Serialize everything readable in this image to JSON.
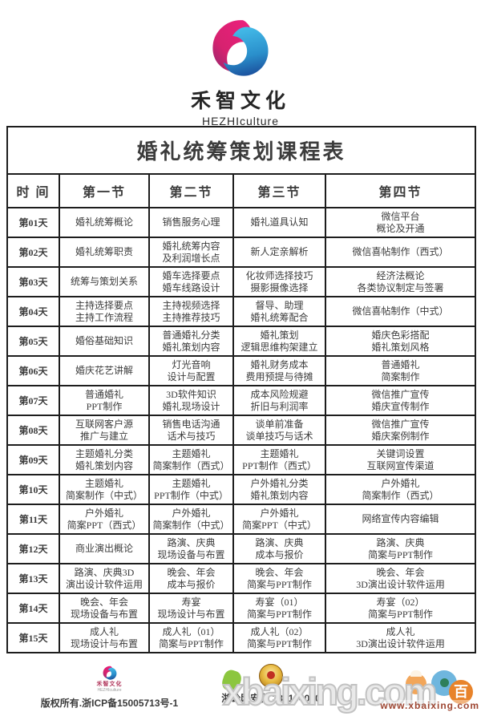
{
  "brand": {
    "name": "禾智文化",
    "subtitle": "HEZHIculture"
  },
  "colors": {
    "logo_pink": "#ee1f7e",
    "logo_pink_dark": "#8e2a6f",
    "logo_blue": "#45bdea",
    "logo_blue_dark": "#1b4f9c",
    "table_border": "#1d1d1d",
    "table_text": "#3c3c3c",
    "watermark_url_color": "#9e4632",
    "badge_gold": "#e7b93f"
  },
  "table": {
    "title": "婚礼统筹策划课程表",
    "headers": [
      "时 间",
      "第一节",
      "第二节",
      "第三节",
      "第四节"
    ],
    "rows": [
      {
        "day": "第01天",
        "lessons": [
          [
            "婚礼统筹概论"
          ],
          [
            "销售服务心理"
          ],
          [
            "婚礼道具认知"
          ],
          [
            "微信平台",
            "概论及开通"
          ]
        ]
      },
      {
        "day": "第02天",
        "lessons": [
          [
            "婚礼统筹职责"
          ],
          [
            "婚礼统筹内容",
            "及利润增长点"
          ],
          [
            "新人定亲解析"
          ],
          [
            "微信喜帖制作（西式）"
          ]
        ]
      },
      {
        "day": "第03天",
        "lessons": [
          [
            "统筹与策划关系"
          ],
          [
            "婚车选择要点",
            "婚车线路设计"
          ],
          [
            "化妆师选择技巧",
            "摄影摄像选择"
          ],
          [
            "经济法概论",
            "各类协议制定与签署"
          ]
        ]
      },
      {
        "day": "第04天",
        "lessons": [
          [
            "主持选择要点",
            "主持工作流程"
          ],
          [
            "主持视频选择",
            "主持推荐技巧"
          ],
          [
            "督导、助理",
            "婚礼统筹配合"
          ],
          [
            "微信喜帖制作（中式）"
          ]
        ]
      },
      {
        "day": "第05天",
        "lessons": [
          [
            "婚俗基础知识"
          ],
          [
            "普通婚礼分类",
            "婚礼策划内容"
          ],
          [
            "婚礼策划",
            "逻辑思维构架建立"
          ],
          [
            "婚庆色彩搭配",
            "婚礼策划风格"
          ]
        ]
      },
      {
        "day": "第06天",
        "lessons": [
          [
            "婚庆花艺讲解"
          ],
          [
            "灯光音响",
            "设计与配置"
          ],
          [
            "婚礼财务成本",
            "费用预提与待摊"
          ],
          [
            "普通婚礼",
            "简案制作"
          ]
        ]
      },
      {
        "day": "第07天",
        "lessons": [
          [
            "普通婚礼",
            "PPT制作"
          ],
          [
            "3D软件知识",
            "婚礼现场设计"
          ],
          [
            "成本风险规避",
            "折旧与利润率"
          ],
          [
            "微信推广宣传",
            "婚庆宣传制作"
          ]
        ]
      },
      {
        "day": "第08天",
        "lessons": [
          [
            "互联网客户源",
            "推广与建立"
          ],
          [
            "销售电话沟通",
            "话术与技巧"
          ],
          [
            "谈单前准备",
            "谈单技巧与话术"
          ],
          [
            "微信推广宣传",
            "婚庆案例制作"
          ]
        ]
      },
      {
        "day": "第09天",
        "lessons": [
          [
            "主题婚礼分类",
            "婚礼策划内容"
          ],
          [
            "主题婚礼",
            "简案制作（西式）"
          ],
          [
            "主题婚礼",
            "PPT制作（西式）"
          ],
          [
            "关键词设置",
            "互联网宣传渠道"
          ]
        ]
      },
      {
        "day": "第10天",
        "lessons": [
          [
            "主题婚礼",
            "简案制作（中式）"
          ],
          [
            "主题婚礼",
            "PPT制作（中式）"
          ],
          [
            "户外婚礼分类",
            "婚礼策划内容"
          ],
          [
            "户外婚礼",
            "简案制作（西式）"
          ]
        ]
      },
      {
        "day": "第11天",
        "lessons": [
          [
            "户外婚礼",
            "简案PPT（西式）"
          ],
          [
            "户外婚礼",
            "简案制作（中式）"
          ],
          [
            "户外婚礼",
            "简案PPT（中式）"
          ],
          [
            "网络宣传内容编辑"
          ]
        ]
      },
      {
        "day": "第12天",
        "lessons": [
          [
            "商业演出概论"
          ],
          [
            "路演、庆典",
            "现场设备与布置"
          ],
          [
            "路演、庆典",
            "成本与报价"
          ],
          [
            "路演、庆典",
            "简案与PPT制作"
          ]
        ]
      },
      {
        "day": "第13天",
        "lessons": [
          [
            "路演、庆典3D",
            "演出设计软件运用"
          ],
          [
            "晚会、年会",
            "成本与报价"
          ],
          [
            "晚会、年会",
            "简案与PPT制作"
          ],
          [
            "晚会、年会",
            "3D演出设计软件运用"
          ]
        ]
      },
      {
        "day": "第14天",
        "lessons": [
          [
            "晚会、年会",
            "现场设备与布置"
          ],
          [
            "寿宴",
            "现场设计与布置"
          ],
          [
            "寿宴（01）",
            "简案与PPT制作"
          ],
          [
            "寿宴（02）",
            "简案与PPT制作"
          ]
        ]
      },
      {
        "day": "第15天",
        "lessons": [
          [
            "成人礼",
            "现场设计与布置"
          ],
          [
            "成人礼（01）",
            "简案与PPT制作"
          ],
          [
            "成人礼（02）",
            "简案与PPT制作"
          ],
          [
            "成人礼",
            "3D演出设计软件运用"
          ]
        ]
      }
    ]
  },
  "footer": {
    "mini_logo_name": "禾智文化",
    "mini_logo_sub": "HEZHIculture",
    "copyright": "版权所有.浙ICP备15005713号-1",
    "police_text": "浙公网安备 330104020"
  },
  "watermark": {
    "big_text": "xbaixing.com",
    "url": "www.xbaixing.com",
    "bai_char": "百"
  }
}
